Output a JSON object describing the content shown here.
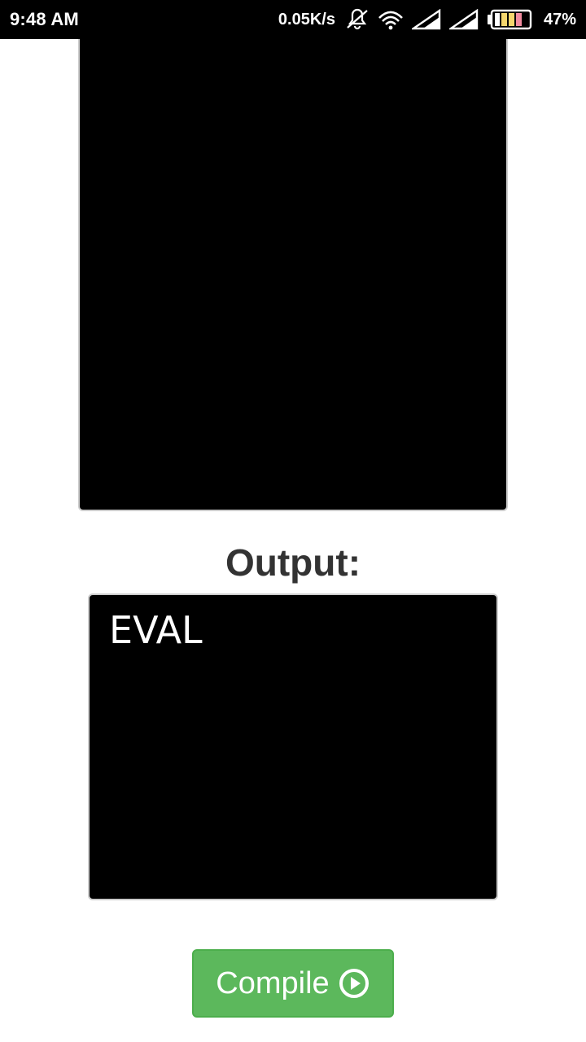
{
  "status_bar": {
    "time": "9:48 AM",
    "net_speed": "0.05K/s",
    "battery_percent": "47%",
    "icons": [
      "vibrate-off-icon",
      "wifi-icon",
      "signal-icon",
      "signal-icon",
      "battery-icon"
    ]
  },
  "editor": {
    "content": ""
  },
  "output": {
    "title": "Output:",
    "text": "EVAL"
  },
  "compile": {
    "label": "Compile",
    "icon": "play-circle-icon"
  },
  "colors": {
    "button_bg": "#5cb85c",
    "panel_bg": "#000000",
    "title_text": "#333333"
  }
}
